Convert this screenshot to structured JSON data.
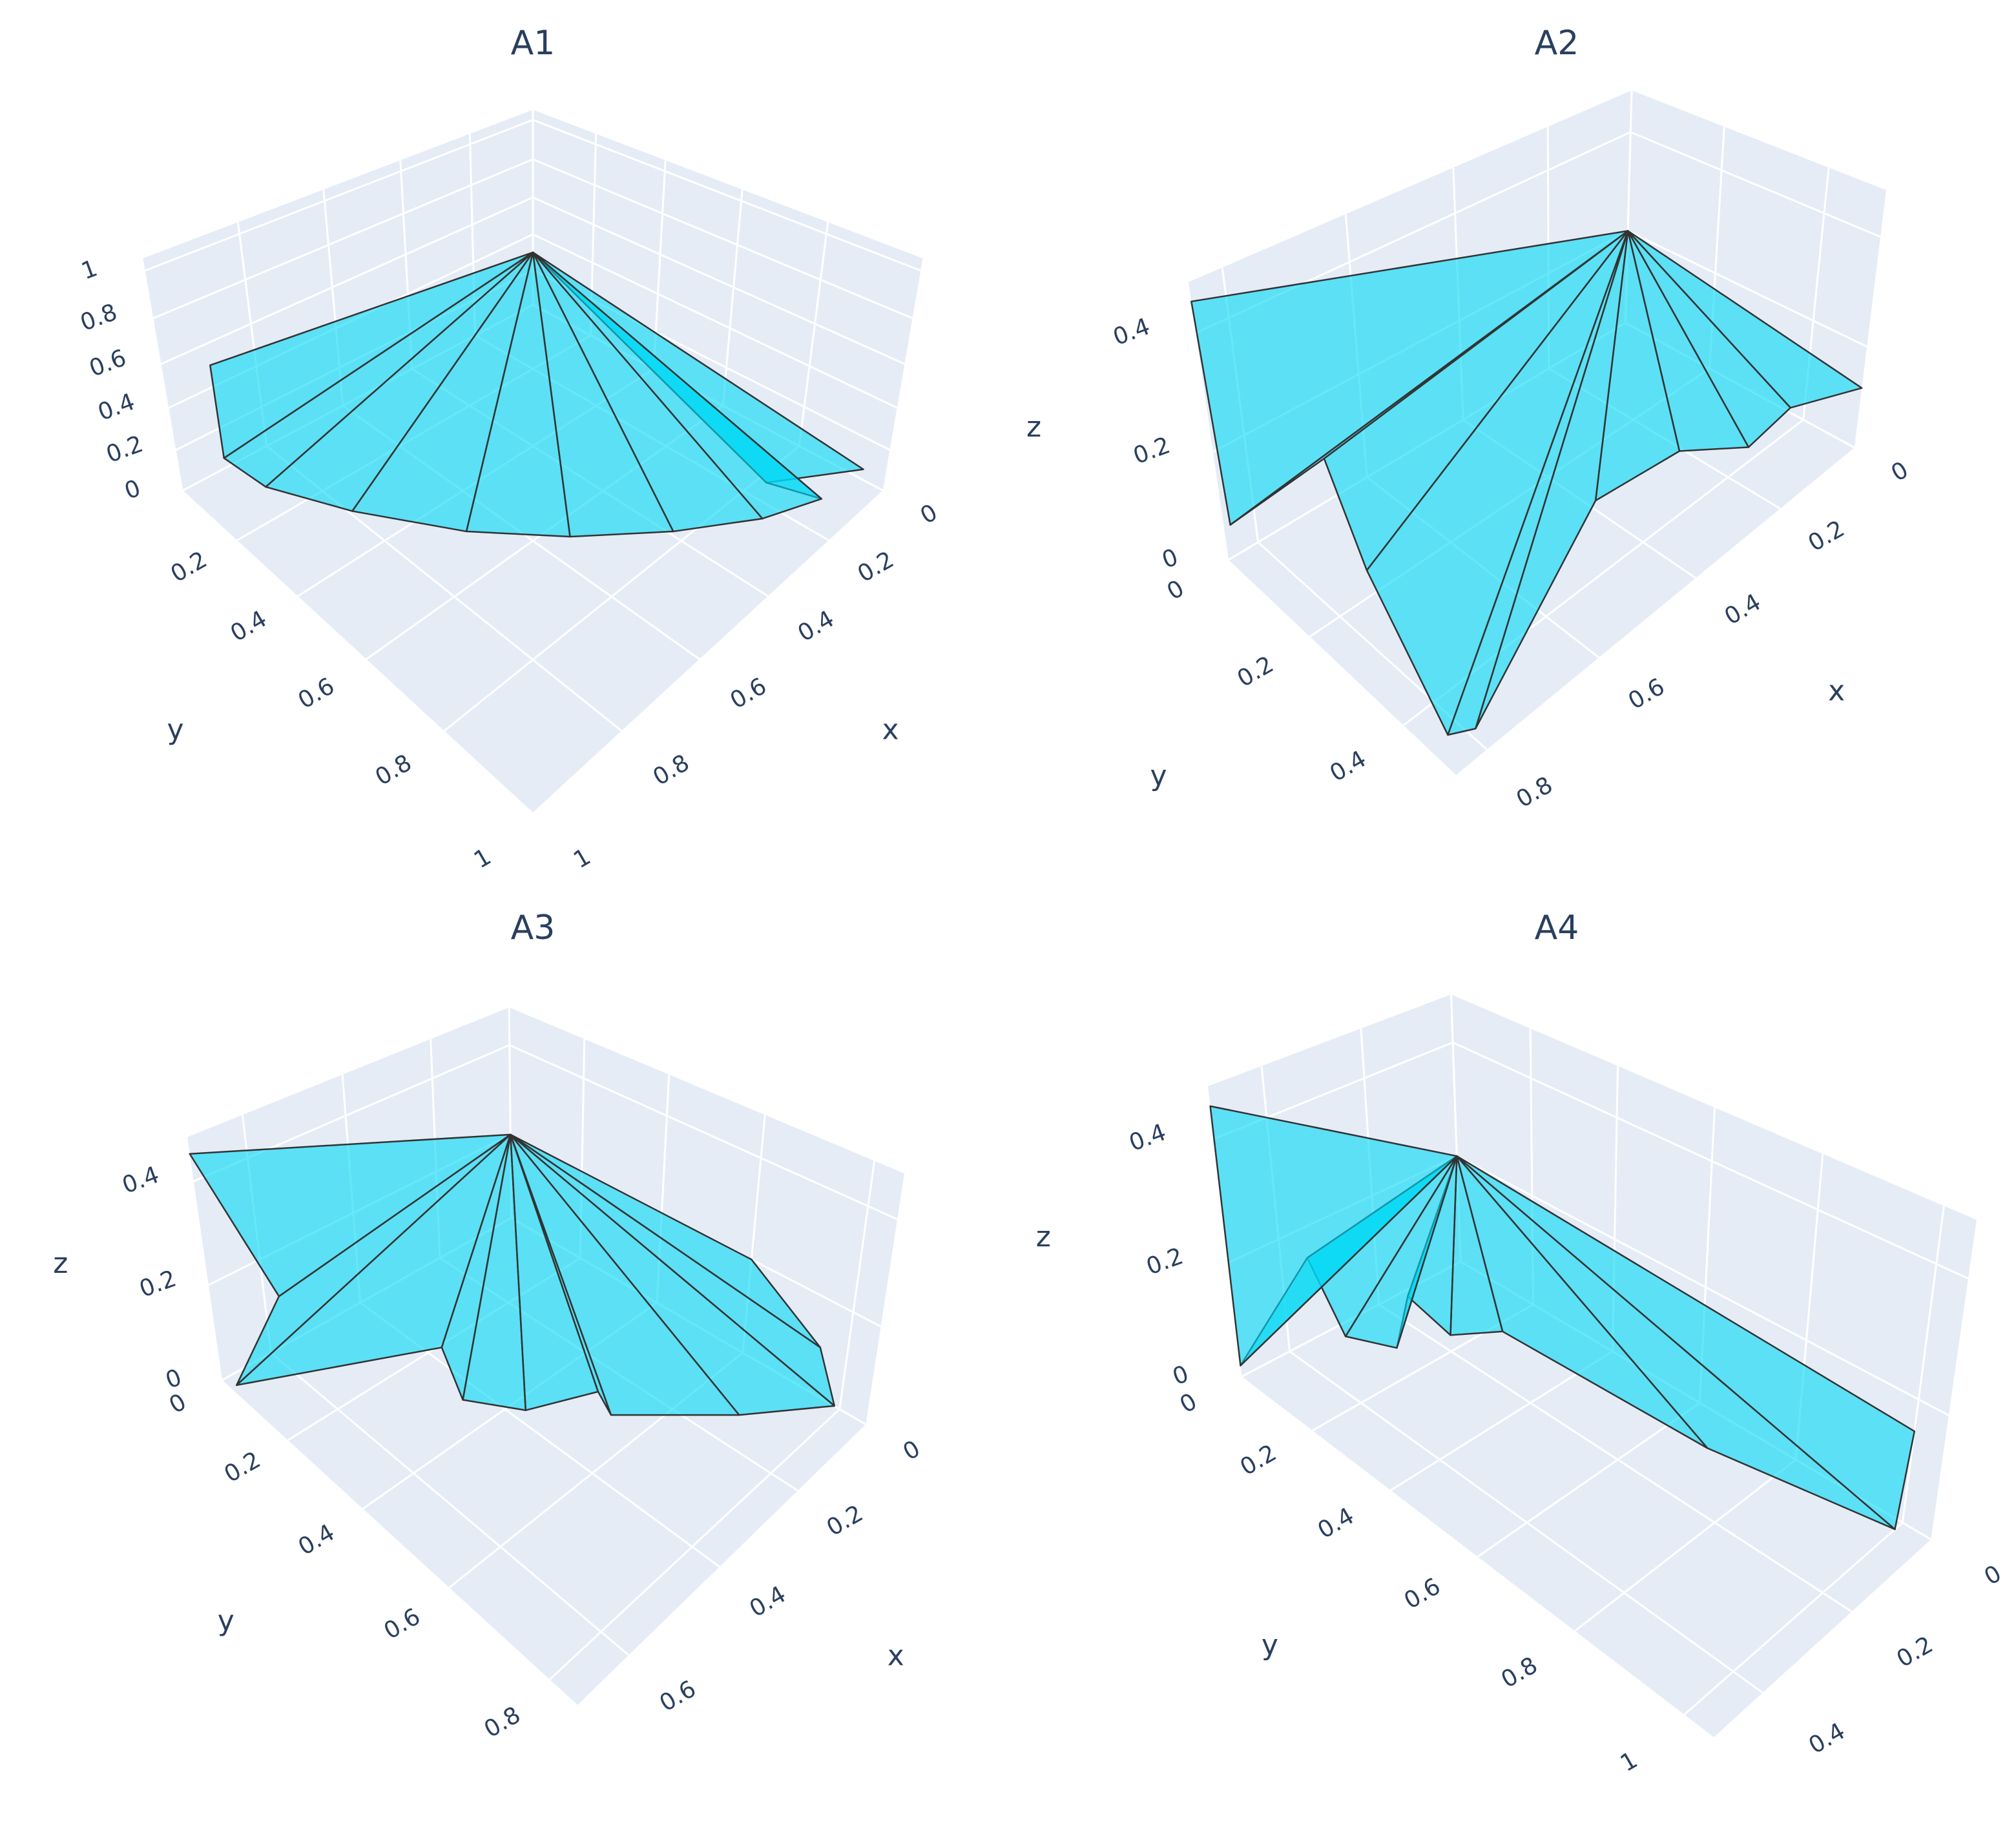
{
  "chart_data": [
    {
      "type": "mesh3d",
      "title": "A1",
      "xlabel": "x",
      "ylabel": "y",
      "color": "#00d8f5",
      "opacity": 0.6,
      "xlim": [
        0,
        1
      ],
      "ylim": [
        0,
        1
      ],
      "zlim": [
        0,
        1.05
      ],
      "xticks": [
        0,
        0.2,
        0.4,
        0.6,
        0.8,
        1
      ],
      "yticks": [
        0.2,
        0.4,
        0.6,
        0.8,
        1
      ],
      "zticks": [
        0,
        0.2,
        0.4,
        0.6,
        0.8,
        1
      ],
      "apex": {
        "x": 0,
        "y": 0,
        "z": 0.3
      },
      "rim": {
        "x": [
          0.9,
          0.9,
          0.88,
          0.8,
          0.68,
          0.55,
          0.4,
          0.25,
          0.12,
          0.2,
          0
        ],
        "y": [
          0,
          0,
          0.12,
          0.3,
          0.5,
          0.65,
          0.78,
          0.88,
          0.93,
          0.85,
          0.95
        ],
        "z": [
          0.5,
          0.05,
          0.02,
          0.02,
          0.02,
          0.02,
          0.02,
          0.02,
          0.02,
          0.1,
          0.05
        ]
      }
    },
    {
      "type": "mesh3d",
      "title": "A2",
      "xlabel": "x",
      "ylabel": "y",
      "zlabel": "z",
      "color": "#00d8f5",
      "opacity": 0.6,
      "xlim": [
        0,
        0.85
      ],
      "ylim": [
        0,
        0.5
      ],
      "zlim": [
        0,
        0.48
      ],
      "xticks": [
        0,
        0.2,
        0.4,
        0.6,
        0.8
      ],
      "yticks": [
        0,
        0.2,
        0.4
      ],
      "zticks": [
        0,
        0.2,
        0.4
      ],
      "apex": {
        "x": 0,
        "y": 0,
        "z": 0.2
      },
      "rim": {
        "x": [
          0.85,
          0.85,
          0.75,
          0.75,
          0.82,
          0.8,
          0.45,
          0.3,
          0.18,
          0.12,
          0
        ],
        "y": [
          0,
          0.02,
          0.12,
          0.2,
          0.45,
          0.48,
          0.35,
          0.38,
          0.42,
          0.45,
          0.5
        ],
        "z": [
          0.45,
          0.08,
          0.2,
          0.05,
          0,
          0.02,
          0.08,
          0.1,
          0.06,
          0.12,
          0.12
        ]
      }
    },
    {
      "type": "mesh3d",
      "title": "A3",
      "xlabel": "x",
      "ylabel": "y",
      "zlabel": "z",
      "color": "#00d8f5",
      "opacity": 0.6,
      "xlim": [
        0,
        0.7
      ],
      "ylim": [
        0,
        0.85
      ],
      "zlim": [
        0,
        0.48
      ],
      "xticks": [
        0,
        0.2,
        0.4,
        0.6
      ],
      "yticks": [
        0,
        0.2,
        0.4,
        0.6,
        0.8
      ],
      "zticks": [
        0,
        0.2,
        0.4
      ],
      "apex": {
        "x": 0,
        "y": 0,
        "z": 0.2
      },
      "rim": {
        "x": [
          0.7,
          0.6,
          0.7,
          0.45,
          0.45,
          0.4,
          0.3,
          0.3,
          0.15,
          0.02,
          0,
          0
        ],
        "y": [
          0,
          0.05,
          0.05,
          0.3,
          0.35,
          0.45,
          0.52,
          0.55,
          0.7,
          0.8,
          0.75,
          0.6
        ],
        "z": [
          0.45,
          0.15,
          0.02,
          0.1,
          0.02,
          0.03,
          0.05,
          0.02,
          0.02,
          0.02,
          0.1,
          0.2
        ]
      }
    },
    {
      "type": "mesh3d",
      "title": "A4",
      "xlabel": "x",
      "ylabel": "y",
      "zlabel": "z",
      "color": "#00d8f5",
      "opacity": 0.6,
      "xlim": [
        0,
        0.5
      ],
      "ylim": [
        0,
        1.05
      ],
      "zlim": [
        0,
        0.48
      ],
      "xticks": [
        0,
        0.2,
        0.4
      ],
      "yticks": [
        0,
        0.2,
        0.4,
        0.6,
        0.8,
        1
      ],
      "zticks": [
        0,
        0.2,
        0.4
      ],
      "apex": {
        "x": 0,
        "y": 0,
        "z": 0.2
      },
      "rim": {
        "x": [
          0.5,
          0.5,
          0.4,
          0.35,
          0.28,
          0.25,
          0.2,
          0.15,
          0.1,
          0.02,
          0
        ],
        "y": [
          0,
          0,
          0.08,
          0.1,
          0.15,
          0.15,
          0.2,
          0.28,
          0.7,
          1,
          1
        ],
        "z": [
          0.45,
          0.02,
          0.2,
          0.05,
          0.02,
          0.1,
          0.03,
          0.05,
          0.02,
          0,
          0.15
        ]
      }
    }
  ]
}
